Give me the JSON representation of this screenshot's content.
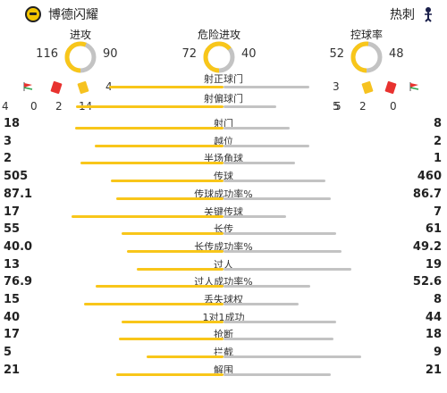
{
  "header": {
    "home_team": "博德闪耀",
    "away_team": "热刺",
    "home_crest_icon": "bodo-glimt-crest-icon",
    "away_crest_icon": "tottenham-crest-icon"
  },
  "colors": {
    "home": "#f8c61a",
    "away": "#c3c3c3"
  },
  "donuts": [
    {
      "label": "进攻",
      "home": "116",
      "away": "90",
      "home_share": 0.563
    },
    {
      "label": "危险进攻",
      "home": "72",
      "away": "40",
      "home_share": 0.643
    },
    {
      "label": "控球率",
      "home": "52",
      "away": "48",
      "home_share": 0.52
    }
  ],
  "discipline": {
    "home_corners": "4",
    "home_red": "0",
    "home_yellow": "2",
    "away_corners": "5",
    "away_red": "2",
    "away_yellow": "0"
  },
  "shots": {
    "on_target": {
      "label": "射正球门",
      "home": "4",
      "away": "3",
      "home_share": 0.571
    },
    "off_target": {
      "label": "射偏球门",
      "home": "14",
      "away": "5",
      "home_share": 0.737
    }
  },
  "stats": [
    {
      "name": "射门",
      "home": "18",
      "away": "8",
      "home_share": 0.69
    },
    {
      "name": "越位",
      "home": "3",
      "away": "2",
      "home_share": 0.6
    },
    {
      "name": "半场角球",
      "home": "2",
      "away": "1",
      "home_share": 0.667
    },
    {
      "name": "传球",
      "home": "505",
      "away": "460",
      "home_share": 0.523
    },
    {
      "name": "传球成功率%",
      "home": "87.1",
      "away": "86.7",
      "home_share": 0.501
    },
    {
      "name": "关键传球",
      "home": "17",
      "away": "7",
      "home_share": 0.708
    },
    {
      "name": "长传",
      "home": "55",
      "away": "61",
      "home_share": 0.474
    },
    {
      "name": "长传成功率%",
      "home": "40.0",
      "away": "49.2",
      "home_share": 0.448
    },
    {
      "name": "过人",
      "home": "13",
      "away": "19",
      "home_share": 0.406
    },
    {
      "name": "过人成功率%",
      "home": "76.9",
      "away": "52.6",
      "home_share": 0.594
    },
    {
      "name": "丢失球权",
      "home": "15",
      "away": "8",
      "home_share": 0.652
    },
    {
      "name": "1对1成功",
      "home": "40",
      "away": "44",
      "home_share": 0.476
    },
    {
      "name": "抢断",
      "home": "17",
      "away": "18",
      "home_share": 0.486
    },
    {
      "name": "拦截",
      "home": "5",
      "away": "9",
      "home_share": 0.357
    },
    {
      "name": "解围",
      "home": "21",
      "away": "21",
      "home_share": 0.5
    }
  ]
}
